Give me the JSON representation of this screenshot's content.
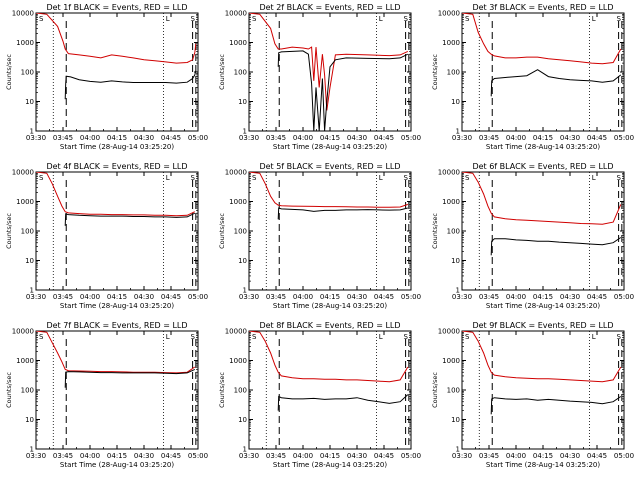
{
  "chart_data": [
    {
      "type": "line",
      "title": "Det 1f BLACK = Events, RED = LLD",
      "xlabel": "Start Time (28-Aug-14 03:25:20)",
      "ylabel": "Counts/sec",
      "yscale": "log",
      "ylim": [
        1,
        10000
      ],
      "xticks": [
        "03:30",
        "03:45",
        "04:00",
        "04:15",
        "04:30",
        "04:45",
        "05:00"
      ],
      "yticks": [
        "1",
        "10",
        "100",
        "1000",
        "10000"
      ],
      "marker_labels": [
        "S",
        "L",
        "S"
      ],
      "series": [
        {
          "color": "#000000",
          "x": [
            3.77,
            3.775,
            3.78,
            3.82,
            3.9,
            4.0,
            4.1,
            4.2,
            4.3,
            4.4,
            4.5,
            4.6,
            4.7,
            4.8,
            4.9,
            4.95,
            4.97,
            4.98
          ],
          "values": [
            12,
            40,
            72,
            68,
            55,
            48,
            45,
            50,
            46,
            44,
            44,
            44,
            44,
            42,
            45,
            60,
            80,
            110
          ]
        },
        {
          "color": "#d00000",
          "x": [
            3.5,
            3.6,
            3.7,
            3.75,
            3.77,
            3.8,
            3.9,
            4.0,
            4.1,
            4.2,
            4.3,
            4.4,
            4.5,
            4.6,
            4.7,
            4.8,
            4.9,
            4.95,
            4.97,
            4.98
          ],
          "values": [
            10000,
            9000,
            3500,
            1100,
            600,
            420,
            380,
            340,
            300,
            380,
            340,
            300,
            260,
            240,
            220,
            200,
            210,
            260,
            450,
            900
          ]
        }
      ]
    },
    {
      "type": "line",
      "title": "Det 2f BLACK = Events, RED = LLD",
      "xlabel": "Start Time (28-Aug-14 03:25:20)",
      "ylabel": "Counts/sec",
      "yscale": "log",
      "ylim": [
        1,
        10000
      ],
      "xticks": [
        "03:30",
        "03:45",
        "04:00",
        "04:15",
        "04:30",
        "04:45",
        "05:00"
      ],
      "yticks": [
        "1",
        "10",
        "100",
        "1000",
        "10000"
      ],
      "marker_labels": [
        "S",
        "L",
        "S"
      ],
      "series": [
        {
          "color": "#000000",
          "x": [
            3.77,
            3.775,
            3.8,
            3.9,
            4.0,
            4.05,
            4.08,
            4.1,
            4.12,
            4.15,
            4.18,
            4.2,
            4.22,
            4.25,
            4.3,
            4.4,
            4.6,
            4.8,
            4.9,
            4.97
          ],
          "values": [
            150,
            450,
            480,
            500,
            520,
            400,
            40,
            1,
            30,
            1,
            60,
            1,
            10,
            150,
            260,
            300,
            290,
            280,
            300,
            400
          ]
        },
        {
          "color": "#d00000",
          "x": [
            3.5,
            3.6,
            3.7,
            3.74,
            3.77,
            3.8,
            3.9,
            4.0,
            4.05,
            4.08,
            4.1,
            4.12,
            4.15,
            4.18,
            4.2,
            4.22,
            4.25,
            4.3,
            4.4,
            4.6,
            4.8,
            4.9,
            4.97
          ],
          "values": [
            10000,
            9000,
            3000,
            900,
            600,
            600,
            700,
            650,
            600,
            700,
            50,
            700,
            30,
            400,
            80,
            5,
            30,
            380,
            400,
            380,
            360,
            380,
            500
          ]
        }
      ]
    },
    {
      "type": "line",
      "title": "Det 3f BLACK = Events, RED = LLD",
      "xlabel": "Start Time (28-Aug-14 03:25:20)",
      "ylabel": "Counts/sec",
      "yscale": "log",
      "ylim": [
        1,
        10000
      ],
      "xticks": [
        "03:30",
        "03:45",
        "04:00",
        "04:15",
        "04:30",
        "04:45",
        "05:00"
      ],
      "yticks": [
        "1",
        "10",
        "100",
        "1000",
        "10000"
      ],
      "marker_labels": [
        "S",
        "L",
        "S"
      ],
      "series": [
        {
          "color": "#000000",
          "x": [
            3.77,
            3.775,
            3.8,
            3.9,
            4.0,
            4.1,
            4.2,
            4.3,
            4.4,
            4.5,
            4.6,
            4.7,
            4.8,
            4.9,
            4.97
          ],
          "values": [
            15,
            50,
            60,
            65,
            70,
            75,
            120,
            70,
            60,
            55,
            52,
            50,
            45,
            50,
            80
          ]
        },
        {
          "color": "#d00000",
          "x": [
            3.5,
            3.6,
            3.65,
            3.7,
            3.74,
            3.77,
            3.8,
            3.9,
            4.0,
            4.1,
            4.2,
            4.3,
            4.4,
            4.5,
            4.6,
            4.7,
            4.8,
            4.9,
            4.97
          ],
          "values": [
            10000,
            9000,
            2200,
            900,
            500,
            400,
            350,
            300,
            300,
            320,
            320,
            280,
            260,
            240,
            220,
            200,
            190,
            210,
            600
          ]
        }
      ]
    },
    {
      "type": "line",
      "title": "Det 4f BLACK = Events, RED = LLD",
      "xlabel": "Start Time (28-Aug-14 03:25:20)",
      "ylabel": "Counts/sec",
      "yscale": "log",
      "ylim": [
        1,
        10000
      ],
      "xticks": [
        "03:30",
        "03:45",
        "04:00",
        "04:15",
        "04:30",
        "04:45",
        "05:00"
      ],
      "yticks": [
        "1",
        "10",
        "100",
        "1000",
        "10000"
      ],
      "marker_labels": [
        "S",
        "L",
        "S"
      ],
      "series": [
        {
          "color": "#000000",
          "x": [
            3.77,
            3.775,
            3.8,
            3.9,
            4.0,
            4.1,
            4.2,
            4.3,
            4.4,
            4.5,
            4.6,
            4.7,
            4.8,
            4.9,
            4.97
          ],
          "values": [
            150,
            380,
            360,
            340,
            330,
            320,
            320,
            320,
            310,
            310,
            300,
            300,
            290,
            300,
            400
          ]
        },
        {
          "color": "#d00000",
          "x": [
            3.5,
            3.6,
            3.65,
            3.7,
            3.74,
            3.77,
            3.8,
            3.9,
            4.0,
            4.1,
            4.2,
            4.3,
            4.4,
            4.5,
            4.6,
            4.7,
            4.8,
            4.9,
            4.97
          ],
          "values": [
            10000,
            9000,
            4000,
            1500,
            700,
            450,
            410,
            390,
            370,
            370,
            360,
            360,
            350,
            350,
            340,
            340,
            330,
            340,
            450
          ]
        }
      ]
    },
    {
      "type": "line",
      "title": "Det 5f BLACK = Events, RED = LLD",
      "xlabel": "Start Time (28-Aug-14 03:25:20)",
      "ylabel": "Counts/sec",
      "yscale": "log",
      "ylim": [
        1,
        10000
      ],
      "xticks": [
        "03:30",
        "03:45",
        "04:00",
        "04:15",
        "04:30",
        "04:45",
        "05:00"
      ],
      "yticks": [
        "1",
        "10",
        "100",
        "1000",
        "10000"
      ],
      "marker_labels": [
        "S",
        "L",
        "S"
      ],
      "series": [
        {
          "color": "#000000",
          "x": [
            3.77,
            3.775,
            3.8,
            3.9,
            4.0,
            4.1,
            4.2,
            4.3,
            4.4,
            4.5,
            4.6,
            4.7,
            4.8,
            4.9,
            4.97
          ],
          "values": [
            250,
            600,
            560,
            540,
            520,
            460,
            500,
            500,
            520,
            520,
            530,
            520,
            510,
            520,
            600
          ]
        },
        {
          "color": "#d00000",
          "x": [
            3.5,
            3.6,
            3.65,
            3.7,
            3.74,
            3.77,
            3.8,
            3.9,
            4.0,
            4.1,
            4.2,
            4.3,
            4.4,
            4.5,
            4.6,
            4.7,
            4.8,
            4.9,
            4.97
          ],
          "values": [
            10000,
            9000,
            4000,
            1500,
            900,
            750,
            720,
            700,
            690,
            680,
            670,
            670,
            660,
            650,
            650,
            640,
            640,
            650,
            800
          ]
        }
      ]
    },
    {
      "type": "line",
      "title": "Det 6f BLACK = Events, RED = LLD",
      "xlabel": "Start Time (28-Aug-14 03:25:20)",
      "ylabel": "Counts/sec",
      "yscale": "log",
      "ylim": [
        1,
        10000
      ],
      "xticks": [
        "03:30",
        "03:45",
        "04:00",
        "04:15",
        "04:30",
        "04:45",
        "05:00"
      ],
      "yticks": [
        "1",
        "10",
        "100",
        "1000",
        "10000"
      ],
      "marker_labels": [
        "S",
        "L",
        "S"
      ],
      "series": [
        {
          "color": "#000000",
          "x": [
            3.77,
            3.775,
            3.8,
            3.9,
            4.0,
            4.1,
            4.2,
            4.3,
            4.4,
            4.5,
            4.6,
            4.7,
            4.8,
            4.9,
            4.97
          ],
          "values": [
            15,
            45,
            55,
            55,
            50,
            48,
            45,
            45,
            42,
            40,
            38,
            36,
            34,
            40,
            60
          ]
        },
        {
          "color": "#d00000",
          "x": [
            3.5,
            3.6,
            3.65,
            3.7,
            3.74,
            3.77,
            3.8,
            3.9,
            4.0,
            4.1,
            4.2,
            4.3,
            4.4,
            4.5,
            4.6,
            4.7,
            4.8,
            4.9,
            4.97
          ],
          "values": [
            10000,
            9000,
            4500,
            1800,
            700,
            400,
            300,
            260,
            240,
            230,
            220,
            210,
            200,
            190,
            180,
            175,
            170,
            200,
            800
          ]
        }
      ]
    },
    {
      "type": "line",
      "title": "Det 7f BLACK = Events, RED = LLD",
      "xlabel": "Start Time (28-Aug-14 03:25:20)",
      "ylabel": "Counts/sec",
      "yscale": "log",
      "ylim": [
        1,
        10000
      ],
      "xticks": [
        "03:30",
        "03:45",
        "04:00",
        "04:15",
        "04:30",
        "04:45",
        "05:00"
      ],
      "yticks": [
        "1",
        "10",
        "100",
        "1000",
        "10000"
      ],
      "marker_labels": [
        "S",
        "L",
        "S"
      ],
      "series": [
        {
          "color": "#000000",
          "x": [
            3.77,
            3.775,
            3.8,
            3.9,
            4.0,
            4.1,
            4.2,
            4.3,
            4.4,
            4.5,
            4.6,
            4.7,
            4.8,
            4.9,
            4.97
          ],
          "values": [
            120,
            400,
            420,
            410,
            400,
            390,
            390,
            380,
            380,
            380,
            380,
            370,
            360,
            380,
            500
          ]
        },
        {
          "color": "#d00000",
          "x": [
            3.5,
            3.6,
            3.65,
            3.7,
            3.74,
            3.77,
            3.8,
            3.9,
            4.0,
            4.1,
            4.2,
            4.3,
            4.4,
            4.5,
            4.6,
            4.7,
            4.8,
            4.9,
            4.97
          ],
          "values": [
            10000,
            9000,
            4000,
            1800,
            900,
            500,
            450,
            440,
            430,
            420,
            420,
            410,
            400,
            400,
            400,
            390,
            380,
            400,
            600
          ]
        }
      ]
    },
    {
      "type": "line",
      "title": "Det 8f BLACK = Events, RED = LLD",
      "xlabel": "Start Time (28-Aug-14 03:25:20)",
      "ylabel": "Counts/sec",
      "yscale": "log",
      "ylim": [
        1,
        10000
      ],
      "xticks": [
        "03:30",
        "03:45",
        "04:00",
        "04:15",
        "04:30",
        "04:45",
        "05:00"
      ],
      "yticks": [
        "1",
        "10",
        "100",
        "1000",
        "10000"
      ],
      "marker_labels": [
        "S",
        "L",
        "S"
      ],
      "series": [
        {
          "color": "#000000",
          "x": [
            3.77,
            3.775,
            3.8,
            3.9,
            4.0,
            4.1,
            4.2,
            4.3,
            4.4,
            4.5,
            4.6,
            4.7,
            4.8,
            4.9,
            4.97
          ],
          "values": [
            20,
            60,
            55,
            50,
            50,
            52,
            48,
            50,
            50,
            55,
            45,
            40,
            35,
            40,
            70
          ]
        },
        {
          "color": "#d00000",
          "x": [
            3.5,
            3.6,
            3.65,
            3.7,
            3.74,
            3.77,
            3.8,
            3.9,
            4.0,
            4.1,
            4.2,
            4.3,
            4.4,
            4.5,
            4.6,
            4.7,
            4.8,
            4.9,
            4.97
          ],
          "values": [
            10000,
            9000,
            4500,
            1800,
            700,
            400,
            300,
            260,
            240,
            240,
            230,
            230,
            220,
            220,
            210,
            200,
            190,
            220,
            600
          ]
        }
      ]
    },
    {
      "type": "line",
      "title": "Det 9f BLACK = Events, RED = LLD",
      "xlabel": "Start Time (28-Aug-14 03:25:20)",
      "ylabel": "Counts/sec",
      "yscale": "log",
      "ylim": [
        1,
        10000
      ],
      "xticks": [
        "03:30",
        "03:45",
        "04:00",
        "04:15",
        "04:30",
        "04:45",
        "05:00"
      ],
      "yticks": [
        "1",
        "10",
        "100",
        "1000",
        "10000"
      ],
      "marker_labels": [
        "S",
        "L",
        "S"
      ],
      "series": [
        {
          "color": "#000000",
          "x": [
            3.77,
            3.775,
            3.8,
            3.9,
            4.0,
            4.1,
            4.2,
            4.3,
            4.4,
            4.5,
            4.6,
            4.7,
            4.8,
            4.9,
            4.97
          ],
          "values": [
            15,
            50,
            55,
            50,
            48,
            50,
            45,
            48,
            45,
            42,
            40,
            38,
            34,
            40,
            60
          ]
        },
        {
          "color": "#d00000",
          "x": [
            3.5,
            3.6,
            3.65,
            3.7,
            3.74,
            3.77,
            3.8,
            3.9,
            4.0,
            4.1,
            4.2,
            4.3,
            4.4,
            4.5,
            4.6,
            4.7,
            4.8,
            4.9,
            4.97
          ],
          "values": [
            10000,
            9000,
            4500,
            1800,
            700,
            400,
            320,
            280,
            260,
            250,
            240,
            240,
            230,
            220,
            210,
            200,
            190,
            220,
            600
          ]
        }
      ]
    }
  ]
}
